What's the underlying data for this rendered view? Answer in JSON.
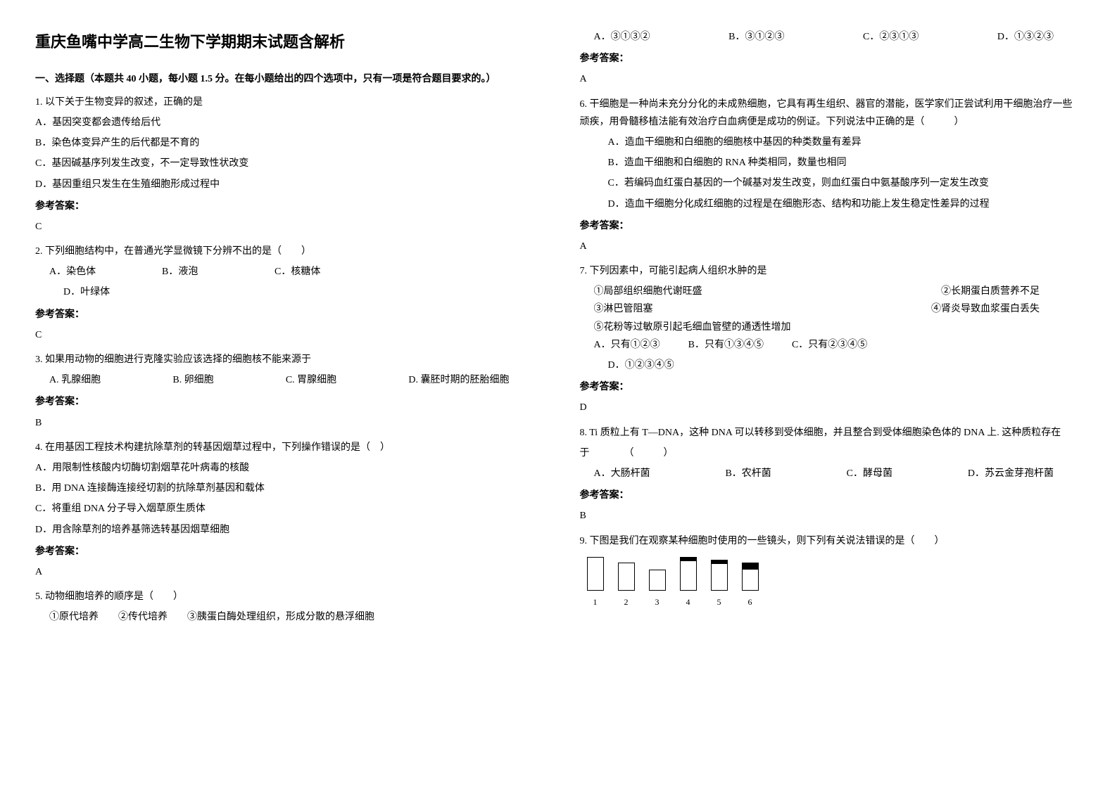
{
  "title": "重庆鱼嘴中学高二生物下学期期末试题含解析",
  "section1_header": "一、选择题（本题共 40 小题，每小题 1.5 分。在每小题给出的四个选项中，只有一项是符合题目要求的。）",
  "answer_label": "参考答案：",
  "q1": {
    "text": "1. 以下关于生物变异的叙述，正确的是",
    "a": "A．基因突变都会遗传给后代",
    "b": "B．染色体变异产生的后代都是不育的",
    "c": "C．基因碱基序列发生改变，不一定导致性状改变",
    "d": "D．基因重组只发生在生殖细胞形成过程中",
    "answer": "C"
  },
  "q2": {
    "text": "2. 下列细胞结构中，在普通光学显微镜下分辨不出的是（　　）",
    "a": "A．染色体",
    "b": "B．液泡",
    "c": "C．核糖体",
    "d": "D．叶绿体",
    "answer": "C"
  },
  "q3": {
    "text": "3. 如果用动物的细胞进行克隆实验应该选择的细胞核不能来源于",
    "a": "A. 乳腺细胞",
    "b": "B. 卵细胞",
    "c": "C. 胃腺细胞",
    "d": "D. 囊胚时期的胚胎细胞",
    "answer": "B"
  },
  "q4": {
    "text": "4. 在用基因工程技术构建抗除草剂的转基因烟草过程中，下列操作错误的是（　）",
    "a": "A．用限制性核酸内切酶切割烟草花叶病毒的核酸",
    "b": "B．用 DNA 连接酶连接经切割的抗除草剂基因和载体",
    "c": "C．将重组 DNA 分子导入烟草原生质体",
    "d": "D．用含除草剂的培养基筛选转基因烟草细胞",
    "answer": "A"
  },
  "q5": {
    "text": "5. 动物细胞培养的顺序是（　　）",
    "line1": "①原代培养　　②传代培养　　③胰蛋白酶处理组织，形成分散的悬浮细胞",
    "a": "A．③①③②",
    "b": "B．③①②③",
    "c": "C．②③①③",
    "d": "D．①③②③",
    "answer": "A"
  },
  "q6": {
    "text": "6. 干细胞是一种尚未充分分化的未成熟细胞，它具有再生组织、器官的潜能，医学家们正尝试利用干细胞治疗一些顽疾，用骨髓移植法能有效治疗白血病便是成功的例证。下列说法中正确的是（　　　）",
    "a": "A．造血干细胞和白细胞的细胞核中基因的种类数量有差异",
    "b": "B．造血干细胞和白细胞的 RNA 种类相同，数量也相同",
    "c": "C．若编码血红蛋白基因的一个碱基对发生改变，则血红蛋白中氨基酸序列一定发生改变",
    "d": "D．造血干细胞分化成红细胞的过程是在细胞形态、结构和功能上发生稳定性差异的过程",
    "answer": "A"
  },
  "q7": {
    "text": "7. 下列因素中，可能引起病人组织水肿的是",
    "item1": "①局部组织细胞代谢旺盛",
    "item2": "②长期蛋白质营养不足",
    "item3": "③淋巴管阻塞",
    "item4": "④肾炎导致血浆蛋白丢失",
    "item5": "⑤花粉等过敏原引起毛细血管壁的通透性增加",
    "a": "A．只有①②③",
    "b": "B．只有①③④⑤",
    "c": "C．只有②③④⑤",
    "d": "D．①②③④⑤",
    "answer": "D"
  },
  "q8": {
    "text": "8. Ti 质粒上有 T—DNA，这种 DNA 可以转移到受体细胞，并且整合到受体细胞染色体的 DNA 上. 这种质粒存在",
    "text2": "于　　　　（　　　）",
    "a": "A．大肠杆菌",
    "b": "B．农杆菌",
    "c": "C．酵母菌",
    "d": "D．苏云金芽孢杆菌",
    "answer": "B"
  },
  "q9": {
    "text": "9. 下图是我们在观察某种细胞时使用的一些镜头，则下列有关说法错误的是（　　）",
    "num1": "1",
    "num2": "2",
    "num3": "3",
    "num4": "4",
    "num5": "5",
    "num6": "6"
  }
}
